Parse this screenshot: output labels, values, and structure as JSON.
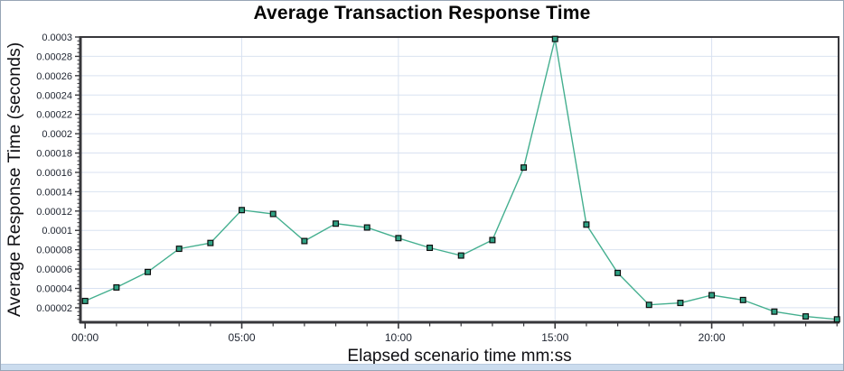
{
  "window": {
    "border_color": "#97a5b5",
    "bottom_strip_color": "#cbdcee",
    "background": "#ffffff"
  },
  "chart_data": {
    "type": "line",
    "title": "Average Transaction Response Time",
    "xlabel": "Elapsed scenario time mm:ss",
    "ylabel": "Average Response Time (seconds)",
    "legend": "none",
    "grid": true,
    "xlim_minutes": [
      -0.15,
      24.05
    ],
    "ylim": [
      5e-06,
      0.0003
    ],
    "x_minutes": [
      0,
      1,
      2,
      3,
      4,
      5,
      6,
      7,
      8,
      9,
      10,
      11,
      12,
      13,
      14,
      15,
      16,
      17,
      18,
      19,
      20,
      21,
      22,
      23,
      24
    ],
    "series": [
      {
        "name": "Average Transaction Response Time",
        "marker": "square",
        "values": [
          2.7e-05,
          4.1e-05,
          5.7e-05,
          8.1e-05,
          8.7e-05,
          0.000121,
          0.000117,
          8.9e-05,
          0.000107,
          0.000103,
          9.2e-05,
          8.2e-05,
          7.4e-05,
          9e-05,
          0.000165,
          0.000298,
          0.000106,
          5.6e-05,
          2.3e-05,
          2.5e-05,
          3.3e-05,
          2.8e-05,
          1.6e-05,
          1.1e-05,
          8e-06
        ]
      }
    ],
    "x_ticks_major": [
      {
        "minute": 0,
        "label": "00:00"
      },
      {
        "minute": 5,
        "label": "05:00"
      },
      {
        "minute": 10,
        "label": "10:00"
      },
      {
        "minute": 15,
        "label": "15:00"
      },
      {
        "minute": 20,
        "label": "20:00"
      }
    ],
    "x_minor_tick_every_minutes": 1,
    "y_ticks_major": [
      {
        "value": 2e-05,
        "label": "0.00002"
      },
      {
        "value": 4e-05,
        "label": "0.00004"
      },
      {
        "value": 6e-05,
        "label": "0.00006"
      },
      {
        "value": 8e-05,
        "label": "0.00008"
      },
      {
        "value": 0.0001,
        "label": "0.0001"
      },
      {
        "value": 0.00012,
        "label": "0.00012"
      },
      {
        "value": 0.00014,
        "label": "0.00014"
      },
      {
        "value": 0.00016,
        "label": "0.00016"
      },
      {
        "value": 0.00018,
        "label": "0.00018"
      },
      {
        "value": 0.0002,
        "label": "0.0002"
      },
      {
        "value": 0.00022,
        "label": "0.00022"
      },
      {
        "value": 0.00024,
        "label": "0.00024"
      },
      {
        "value": 0.00026,
        "label": "0.00026"
      },
      {
        "value": 0.00028,
        "label": "0.00028"
      },
      {
        "value": 0.0003,
        "label": "0.0003"
      }
    ],
    "y_minor_step": 4e-06,
    "colors": {
      "line": "#44af8f",
      "marker_fill": "#2fa183",
      "marker_border": "#0d0d0d",
      "grid": "#d9e2f1",
      "axis": "#37373b",
      "tick_label": "#1e2430",
      "title": "#060606"
    }
  }
}
